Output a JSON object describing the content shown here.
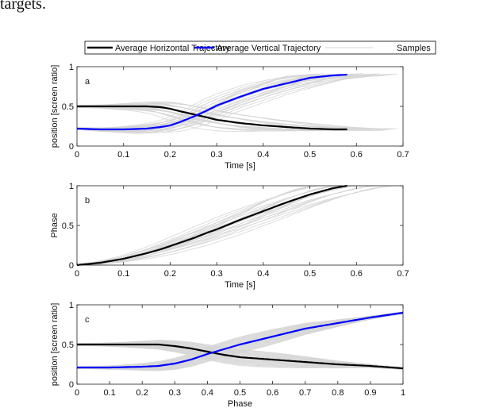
{
  "text_fragment": "targets.",
  "legend": {
    "placement": "top-outside",
    "entries": [
      {
        "label": "Average Horizontal Trajectory",
        "color": "#000000"
      },
      {
        "label": "Average Vertical Trajectory",
        "color": "#0000ff"
      },
      {
        "label": "Samples",
        "color": "#d3d3d3"
      }
    ]
  },
  "chart_data": [
    {
      "type": "line",
      "panel_label": "a",
      "xlabel": "Time [s]",
      "ylabel": "position [screen ratio]",
      "xlim": [
        0,
        0.7
      ],
      "ylim": [
        0,
        1
      ],
      "xticks": [
        "0",
        "0.1",
        "0.2",
        "0.3",
        "0.4",
        "0.5",
        "0.6",
        "0.7"
      ],
      "yticks": [
        "0",
        "0.5",
        "1"
      ],
      "grid": false,
      "x": [
        0,
        0.05,
        0.1,
        0.15,
        0.18,
        0.2,
        0.22,
        0.25,
        0.28,
        0.3,
        0.35,
        0.4,
        0.45,
        0.5,
        0.55,
        0.58
      ],
      "series": [
        {
          "name": "Average Horizontal Trajectory",
          "color": "#000000",
          "values": [
            0.5,
            0.5,
            0.5,
            0.5,
            0.49,
            0.47,
            0.44,
            0.4,
            0.36,
            0.33,
            0.29,
            0.26,
            0.24,
            0.22,
            0.21,
            0.21
          ]
        },
        {
          "name": "Average Vertical Trajectory",
          "color": "#0000ff",
          "values": [
            0.22,
            0.21,
            0.21,
            0.22,
            0.24,
            0.26,
            0.3,
            0.37,
            0.45,
            0.51,
            0.62,
            0.72,
            0.79,
            0.86,
            0.89,
            0.9
          ]
        }
      ]
    },
    {
      "type": "line",
      "panel_label": "b",
      "xlabel": "Time [s]",
      "ylabel": "Phase",
      "xlim": [
        0,
        0.7
      ],
      "ylim": [
        0,
        1
      ],
      "xticks": [
        "0",
        "0.1",
        "0.2",
        "0.3",
        "0.4",
        "0.5",
        "0.6",
        "0.7"
      ],
      "yticks": [
        "0",
        "0.5",
        "1"
      ],
      "grid": false,
      "x": [
        0,
        0.05,
        0.1,
        0.15,
        0.18,
        0.2,
        0.22,
        0.25,
        0.28,
        0.3,
        0.35,
        0.4,
        0.45,
        0.5,
        0.55,
        0.58
      ],
      "series": [
        {
          "color": "#000000",
          "values": [
            0,
            0.03,
            0.08,
            0.15,
            0.2,
            0.24,
            0.28,
            0.34,
            0.41,
            0.45,
            0.57,
            0.68,
            0.79,
            0.89,
            0.97,
            1.0
          ]
        }
      ]
    },
    {
      "type": "line",
      "panel_label": "c",
      "xlabel": "Phase",
      "ylabel": "position [screen ratio]",
      "xlim": [
        0,
        1
      ],
      "ylim": [
        0,
        1
      ],
      "xticks": [
        "0",
        "0.1",
        "0.2",
        "0.3",
        "0.4",
        "0.5",
        "0.6",
        "0.7",
        "0.8",
        "0.9",
        "1"
      ],
      "yticks": [
        "0",
        "0.5",
        "1"
      ],
      "grid": false,
      "x": [
        0,
        0.1,
        0.2,
        0.25,
        0.3,
        0.35,
        0.4,
        0.45,
        0.5,
        0.6,
        0.7,
        0.8,
        0.9,
        1
      ],
      "series": [
        {
          "name": "Average Horizontal Trajectory",
          "color": "#000000",
          "values": [
            0.5,
            0.5,
            0.5,
            0.5,
            0.48,
            0.45,
            0.41,
            0.37,
            0.34,
            0.31,
            0.28,
            0.25,
            0.23,
            0.2
          ]
        },
        {
          "name": "Average Vertical Trajectory",
          "color": "#0000ff",
          "values": [
            0.21,
            0.21,
            0.22,
            0.23,
            0.26,
            0.31,
            0.38,
            0.44,
            0.5,
            0.6,
            0.7,
            0.77,
            0.84,
            0.9
          ]
        }
      ]
    }
  ]
}
